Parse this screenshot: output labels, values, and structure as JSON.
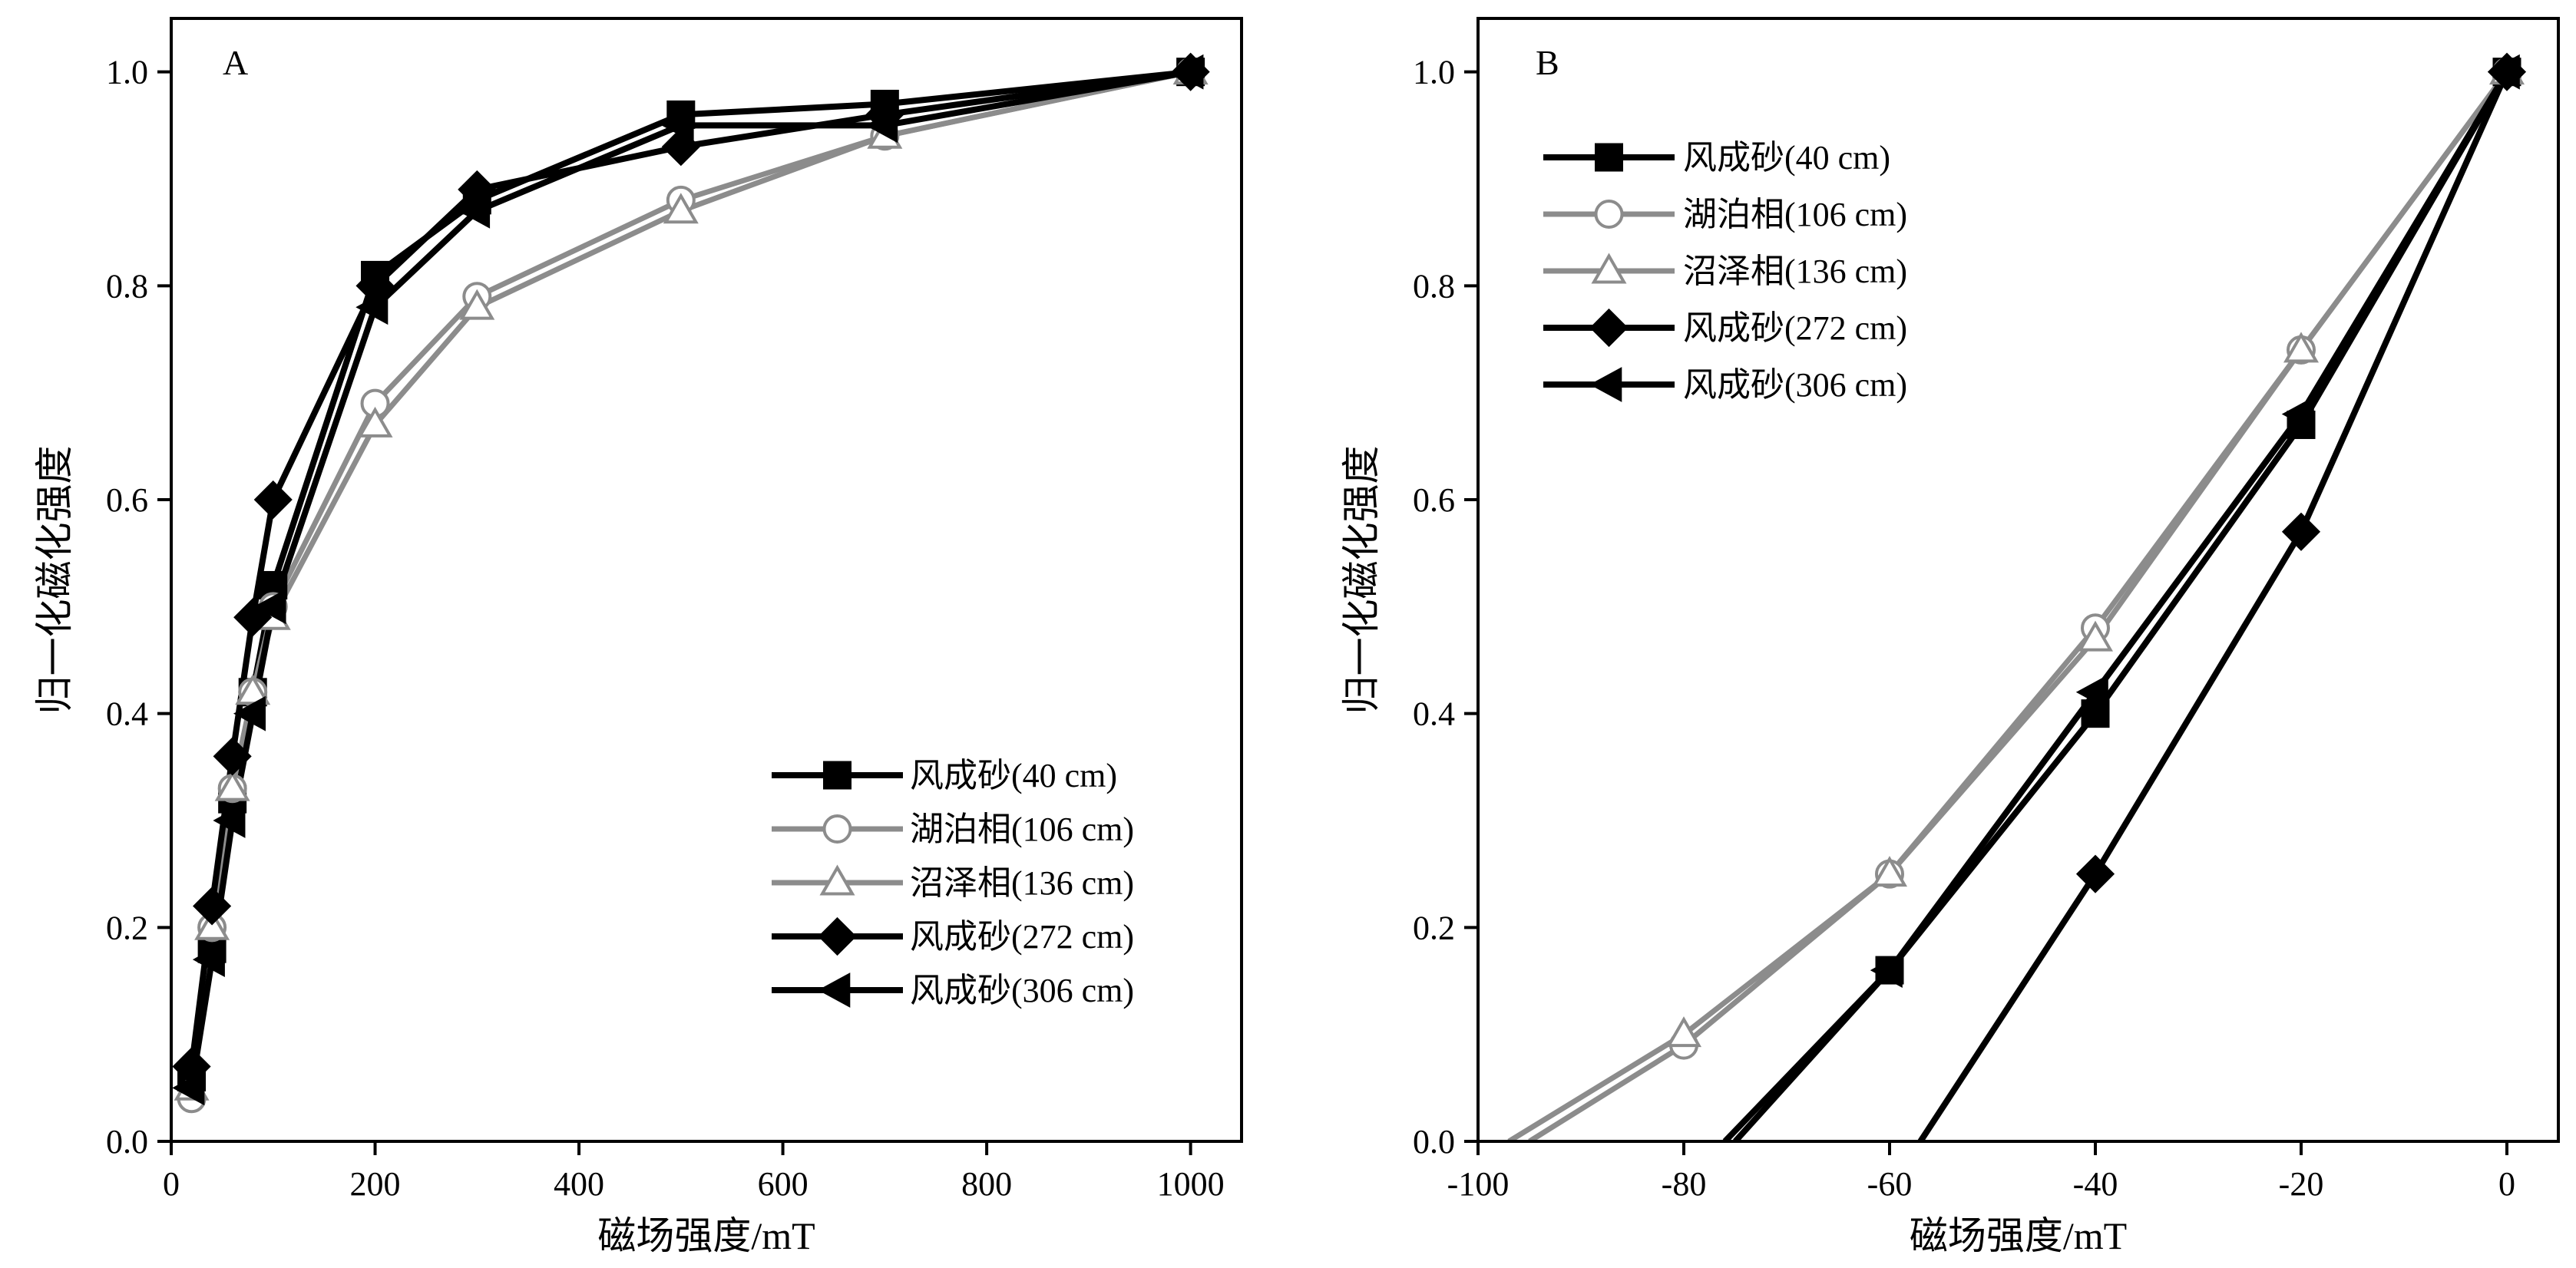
{
  "chart_data": [
    {
      "type": "line",
      "panel_label": "A",
      "title": "",
      "xlabel": "磁场强度/mT",
      "ylabel": "归一化磁化强度",
      "xlim": [
        0,
        1050
      ],
      "ylim": [
        0,
        1.05
      ],
      "xticks": [
        0,
        200,
        400,
        600,
        800,
        1000
      ],
      "yticks": [
        0.0,
        0.2,
        0.4,
        0.6,
        0.8,
        1.0
      ],
      "x_tick_labels": [
        "0",
        "200",
        "400",
        "600",
        "800",
        "1000"
      ],
      "y_tick_labels": [
        "0.0",
        "0.2",
        "0.4",
        "0.6",
        "0.8",
        "1.0"
      ],
      "grid": false,
      "legend_position": "bottom-right",
      "series": [
        {
          "name": "风成砂(40 cm)",
          "marker": "square",
          "color": "#000000",
          "x": [
            20,
            40,
            60,
            80,
            100,
            200,
            300,
            500,
            700,
            1000
          ],
          "y": [
            0.06,
            0.18,
            0.32,
            0.42,
            0.52,
            0.81,
            0.88,
            0.96,
            0.97,
            1.0
          ]
        },
        {
          "name": "湖泊相(106 cm)",
          "marker": "circle",
          "color": "#8c8c8c",
          "x": [
            20,
            40,
            60,
            80,
            100,
            200,
            300,
            500,
            700,
            1000
          ],
          "y": [
            0.04,
            0.2,
            0.33,
            0.42,
            0.5,
            0.69,
            0.79,
            0.88,
            0.94,
            1.0
          ]
        },
        {
          "name": "沼泽相(136 cm)",
          "marker": "triangle-up",
          "color": "#8c8c8c",
          "x": [
            20,
            40,
            60,
            80,
            100,
            200,
            300,
            500,
            700,
            1000
          ],
          "y": [
            0.05,
            0.2,
            0.33,
            0.42,
            0.49,
            0.67,
            0.78,
            0.87,
            0.94,
            1.0
          ]
        },
        {
          "name": "风成砂(272 cm)",
          "marker": "diamond",
          "color": "#000000",
          "x": [
            20,
            40,
            60,
            80,
            100,
            200,
            300,
            500,
            700,
            1000
          ],
          "y": [
            0.07,
            0.22,
            0.36,
            0.49,
            0.6,
            0.8,
            0.89,
            0.93,
            0.96,
            1.0
          ]
        },
        {
          "name": "风成砂(306 cm)",
          "marker": "triangle-left",
          "color": "#000000",
          "x": [
            20,
            40,
            60,
            80,
            100,
            200,
            300,
            500,
            700,
            1000
          ],
          "y": [
            0.05,
            0.17,
            0.3,
            0.4,
            0.5,
            0.78,
            0.87,
            0.95,
            0.95,
            1.0
          ]
        }
      ]
    },
    {
      "type": "line",
      "panel_label": "B",
      "title": "",
      "xlabel": "磁场强度/mT",
      "ylabel": "归一化磁化强度",
      "xlim": [
        -100,
        5
      ],
      "ylim": [
        0,
        1.05
      ],
      "xticks": [
        -100,
        -80,
        -60,
        -40,
        -20,
        0
      ],
      "yticks": [
        0.0,
        0.2,
        0.4,
        0.6,
        0.8,
        1.0
      ],
      "x_tick_labels": [
        "-100",
        "-80",
        "-60",
        "-40",
        "-20",
        "0"
      ],
      "y_tick_labels": [
        "0.0",
        "0.2",
        "0.4",
        "0.6",
        "0.8",
        "1.0"
      ],
      "grid": false,
      "legend_position": "top-left",
      "series": [
        {
          "name": "风成砂(40 cm)",
          "marker": "square",
          "color": "#000000",
          "x": [
            -76,
            -60,
            -40,
            -20,
            0
          ],
          "y": [
            0.0,
            0.16,
            0.4,
            0.67,
            1.0
          ]
        },
        {
          "name": "湖泊相(106 cm)",
          "marker": "circle",
          "color": "#8c8c8c",
          "x": [
            -95,
            -80,
            -60,
            -40,
            -20,
            0
          ],
          "y": [
            0.0,
            0.09,
            0.25,
            0.48,
            0.74,
            1.0
          ]
        },
        {
          "name": "沼泽相(136 cm)",
          "marker": "triangle-up",
          "color": "#8c8c8c",
          "x": [
            -97,
            -80,
            -60,
            -40,
            -20,
            0
          ],
          "y": [
            0.0,
            0.1,
            0.25,
            0.47,
            0.74,
            1.0
          ]
        },
        {
          "name": "风成砂(272 cm)",
          "marker": "diamond",
          "color": "#000000",
          "x": [
            -57,
            -40,
            -20,
            0
          ],
          "y": [
            0.0,
            0.25,
            0.57,
            1.0
          ]
        },
        {
          "name": "风成砂(306 cm)",
          "marker": "triangle-left",
          "color": "#000000",
          "x": [
            -75,
            -60,
            -40,
            -20,
            0
          ],
          "y": [
            0.0,
            0.16,
            0.42,
            0.68,
            1.0
          ]
        }
      ]
    }
  ]
}
